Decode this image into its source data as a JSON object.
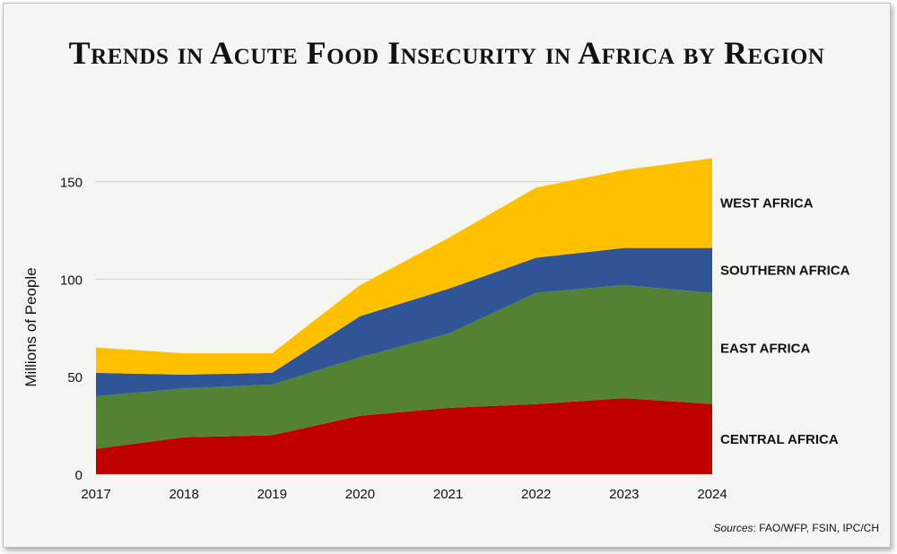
{
  "chart_data": {
    "type": "area",
    "stacked": true,
    "title": "Trends in Acute Food Insecurity in Africa by Region",
    "xlabel": "",
    "ylabel": "Millions of People",
    "x": [
      "2017",
      "2018",
      "2019",
      "2020",
      "2021",
      "2022",
      "2023",
      "2024"
    ],
    "yticks": [
      0,
      50,
      100,
      150
    ],
    "ylim": [
      0,
      165
    ],
    "grid": true,
    "series": [
      {
        "name": "CENTRAL AFRICA",
        "color": "#c00000",
        "values": [
          13,
          19,
          20,
          30,
          34,
          36,
          39,
          36
        ]
      },
      {
        "name": "EAST AFRICA",
        "color": "#548235",
        "values": [
          27,
          25,
          26,
          30,
          38,
          57,
          58,
          57
        ]
      },
      {
        "name": "SOUTHERN AFRICA",
        "color": "#2f5597",
        "values": [
          12,
          7,
          6,
          21,
          23,
          18,
          19,
          23
        ]
      },
      {
        "name": "WEST AFRICA",
        "color": "#ffc000",
        "values": [
          13,
          11,
          10,
          16,
          26,
          36,
          40,
          46
        ]
      }
    ]
  },
  "source": {
    "lead": "Sources",
    "text": ": FAO/WFP, FSIN, IPC/CH"
  }
}
